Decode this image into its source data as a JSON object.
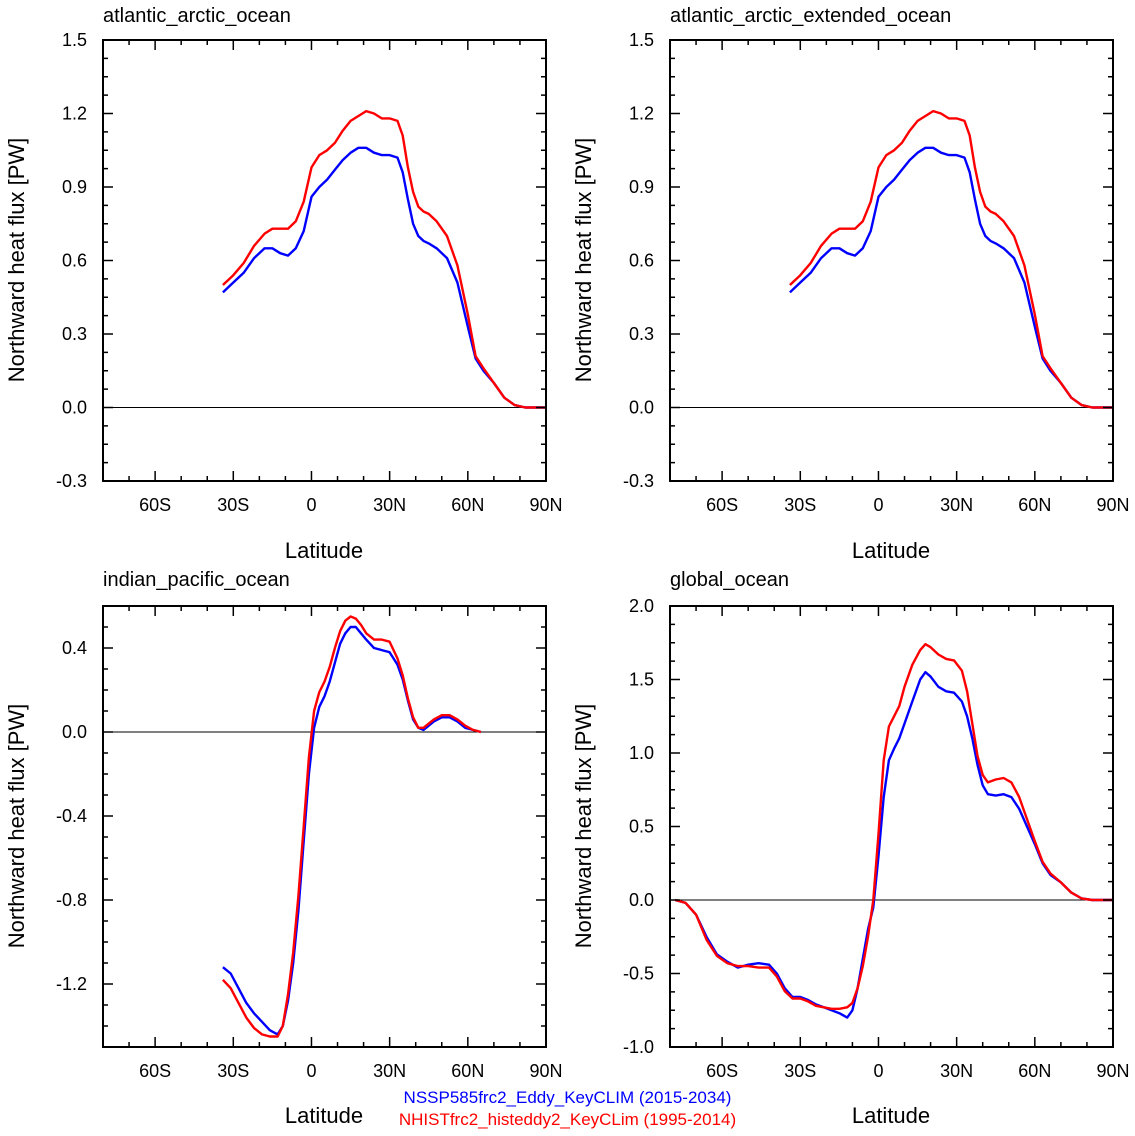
{
  "colors": {
    "ssp585": "#0000ff",
    "hist": "#ff0000",
    "axis": "#000000"
  },
  "legend": {
    "ssp585": "NSSP585frc2_Eddy_KeyCLIM (2015-2034)",
    "hist": "NHISTfrc2_histeddy2_KeyCLim (1995-2014)"
  },
  "chart_data": [
    {
      "type": "line",
      "title": "atlantic_arctic_ocean",
      "xlabel": "Latitude",
      "ylabel": "Northward heat flux [PW]",
      "xlim": [
        -80,
        90
      ],
      "ylim": [
        -0.3,
        1.5
      ],
      "xticks": [
        {
          "v": -60,
          "label": "60S"
        },
        {
          "v": -30,
          "label": "30S"
        },
        {
          "v": 0,
          "label": "0"
        },
        {
          "v": 30,
          "label": "30N"
        },
        {
          "v": 60,
          "label": "60N"
        },
        {
          "v": 90,
          "label": "90N"
        }
      ],
      "yticks": [
        {
          "v": -0.3,
          "label": "-0.3"
        },
        {
          "v": 0,
          "label": "0.0"
        },
        {
          "v": 0.3,
          "label": "0.3"
        },
        {
          "v": 0.6,
          "label": "0.6"
        },
        {
          "v": 0.9,
          "label": "0.9"
        },
        {
          "v": 1.2,
          "label": "1.2"
        },
        {
          "v": 1.5,
          "label": "1.5"
        }
      ],
      "zero_line": true,
      "series": [
        {
          "name": "NSSP585frc2_Eddy_KeyCLIM (2015-2034)",
          "color": "#0000ff",
          "x": [
            -34,
            -30,
            -26,
            -22,
            -18,
            -15,
            -12,
            -9,
            -6,
            -3,
            0,
            3,
            6,
            9,
            12,
            15,
            18,
            21,
            24,
            27,
            30,
            33,
            35,
            37,
            39,
            41,
            43,
            45,
            48,
            52,
            56,
            60,
            63,
            66,
            70,
            74,
            78,
            82,
            86,
            90
          ],
          "y": [
            0.47,
            0.51,
            0.55,
            0.61,
            0.65,
            0.65,
            0.63,
            0.62,
            0.65,
            0.72,
            0.86,
            0.9,
            0.93,
            0.97,
            1.01,
            1.04,
            1.06,
            1.06,
            1.04,
            1.03,
            1.03,
            1.02,
            0.96,
            0.85,
            0.75,
            0.7,
            0.68,
            0.67,
            0.65,
            0.61,
            0.51,
            0.33,
            0.2,
            0.15,
            0.1,
            0.04,
            0.01,
            0.0,
            0.0,
            0.0
          ]
        },
        {
          "name": "NHISTfrc2_histeddy2_KeyCLim (1995-2014)",
          "color": "#ff0000",
          "x": [
            -34,
            -30,
            -26,
            -22,
            -18,
            -15,
            -12,
            -9,
            -6,
            -3,
            0,
            3,
            6,
            9,
            12,
            15,
            18,
            21,
            24,
            27,
            30,
            33,
            35,
            37,
            39,
            41,
            43,
            45,
            48,
            52,
            56,
            60,
            63,
            66,
            70,
            74,
            78,
            82,
            86,
            90
          ],
          "y": [
            0.5,
            0.54,
            0.59,
            0.66,
            0.71,
            0.73,
            0.73,
            0.73,
            0.76,
            0.84,
            0.98,
            1.03,
            1.05,
            1.08,
            1.13,
            1.17,
            1.19,
            1.21,
            1.2,
            1.18,
            1.18,
            1.17,
            1.11,
            0.98,
            0.88,
            0.82,
            0.8,
            0.79,
            0.76,
            0.7,
            0.58,
            0.38,
            0.21,
            0.16,
            0.1,
            0.04,
            0.01,
            0.0,
            0.0,
            0.0
          ]
        }
      ]
    },
    {
      "type": "line",
      "title": "atlantic_arctic_extended_ocean",
      "xlabel": "Latitude",
      "ylabel": "Northward heat flux [PW]",
      "xlim": [
        -80,
        90
      ],
      "ylim": [
        -0.3,
        1.5
      ],
      "xticks": [
        {
          "v": -60,
          "label": "60S"
        },
        {
          "v": -30,
          "label": "30S"
        },
        {
          "v": 0,
          "label": "0"
        },
        {
          "v": 30,
          "label": "30N"
        },
        {
          "v": 60,
          "label": "60N"
        },
        {
          "v": 90,
          "label": "90N"
        }
      ],
      "yticks": [
        {
          "v": -0.3,
          "label": "-0.3"
        },
        {
          "v": 0,
          "label": "0.0"
        },
        {
          "v": 0.3,
          "label": "0.3"
        },
        {
          "v": 0.6,
          "label": "0.6"
        },
        {
          "v": 0.9,
          "label": "0.9"
        },
        {
          "v": 1.2,
          "label": "1.2"
        },
        {
          "v": 1.5,
          "label": "1.5"
        }
      ],
      "zero_line": true,
      "series": [
        {
          "name": "NSSP585frc2_Eddy_KeyCLIM (2015-2034)",
          "color": "#0000ff",
          "x": [
            -34,
            -30,
            -26,
            -22,
            -18,
            -15,
            -12,
            -9,
            -6,
            -3,
            0,
            3,
            6,
            9,
            12,
            15,
            18,
            21,
            24,
            27,
            30,
            33,
            35,
            37,
            39,
            41,
            43,
            45,
            48,
            52,
            56,
            60,
            63,
            66,
            70,
            74,
            78,
            82,
            86,
            90
          ],
          "y": [
            0.47,
            0.51,
            0.55,
            0.61,
            0.65,
            0.65,
            0.63,
            0.62,
            0.65,
            0.72,
            0.86,
            0.9,
            0.93,
            0.97,
            1.01,
            1.04,
            1.06,
            1.06,
            1.04,
            1.03,
            1.03,
            1.02,
            0.96,
            0.85,
            0.75,
            0.7,
            0.68,
            0.67,
            0.65,
            0.61,
            0.51,
            0.33,
            0.2,
            0.15,
            0.1,
            0.04,
            0.01,
            0.0,
            0.0,
            0.0
          ]
        },
        {
          "name": "NHISTfrc2_histeddy2_KeyCLim (1995-2014)",
          "color": "#ff0000",
          "x": [
            -34,
            -30,
            -26,
            -22,
            -18,
            -15,
            -12,
            -9,
            -6,
            -3,
            0,
            3,
            6,
            9,
            12,
            15,
            18,
            21,
            24,
            27,
            30,
            33,
            35,
            37,
            39,
            41,
            43,
            45,
            48,
            52,
            56,
            60,
            63,
            66,
            70,
            74,
            78,
            82,
            86,
            90
          ],
          "y": [
            0.5,
            0.54,
            0.59,
            0.66,
            0.71,
            0.73,
            0.73,
            0.73,
            0.76,
            0.84,
            0.98,
            1.03,
            1.05,
            1.08,
            1.13,
            1.17,
            1.19,
            1.21,
            1.2,
            1.18,
            1.18,
            1.17,
            1.11,
            0.98,
            0.88,
            0.82,
            0.8,
            0.79,
            0.76,
            0.7,
            0.58,
            0.38,
            0.21,
            0.16,
            0.1,
            0.04,
            0.01,
            0.0,
            0.0,
            0.0
          ]
        }
      ]
    },
    {
      "type": "line",
      "title": "indian_pacific_ocean",
      "xlabel": "Latitude",
      "ylabel": "Northward heat flux [PW]",
      "xlim": [
        -80,
        90
      ],
      "ylim": [
        -1.5,
        0.6
      ],
      "xticks": [
        {
          "v": -60,
          "label": "60S"
        },
        {
          "v": -30,
          "label": "30S"
        },
        {
          "v": 0,
          "label": "0"
        },
        {
          "v": 30,
          "label": "30N"
        },
        {
          "v": 60,
          "label": "60N"
        },
        {
          "v": 90,
          "label": "90N"
        }
      ],
      "yticks": [
        {
          "v": -1.2,
          "label": "-1.2"
        },
        {
          "v": -0.8,
          "label": "-0.8"
        },
        {
          "v": -0.4,
          "label": "-0.4"
        },
        {
          "v": 0,
          "label": "0.0"
        },
        {
          "v": 0.4,
          "label": "0.4"
        }
      ],
      "zero_line": true,
      "series": [
        {
          "name": "NSSP585frc2_Eddy_KeyCLIM (2015-2034)",
          "color": "#0000ff",
          "x": [
            -34,
            -31,
            -28,
            -25,
            -22,
            -19,
            -16,
            -13,
            -11,
            -9,
            -7,
            -5,
            -3,
            -1,
            1,
            3,
            5,
            7,
            9,
            11,
            13,
            15,
            17,
            19,
            21,
            24,
            27,
            30,
            33,
            35,
            37,
            39,
            41,
            43,
            45,
            47,
            50,
            53,
            56,
            59,
            62,
            65
          ],
          "y": [
            -1.12,
            -1.15,
            -1.22,
            -1.29,
            -1.34,
            -1.38,
            -1.42,
            -1.44,
            -1.4,
            -1.28,
            -1.1,
            -0.85,
            -0.52,
            -0.2,
            0.02,
            0.12,
            0.17,
            0.24,
            0.33,
            0.42,
            0.47,
            0.5,
            0.5,
            0.47,
            0.44,
            0.4,
            0.39,
            0.38,
            0.32,
            0.25,
            0.15,
            0.06,
            0.02,
            0.01,
            0.03,
            0.05,
            0.07,
            0.07,
            0.05,
            0.02,
            0.01,
            0.0
          ]
        },
        {
          "name": "NHISTfrc2_histeddy2_KeyCLim (1995-2014)",
          "color": "#ff0000",
          "x": [
            -34,
            -31,
            -28,
            -25,
            -22,
            -19,
            -16,
            -13,
            -11,
            -9,
            -7,
            -5,
            -3,
            -1,
            1,
            3,
            5,
            7,
            9,
            11,
            13,
            15,
            17,
            19,
            21,
            24,
            27,
            30,
            33,
            35,
            37,
            39,
            41,
            43,
            45,
            47,
            50,
            53,
            56,
            59,
            62,
            65
          ],
          "y": [
            -1.18,
            -1.22,
            -1.29,
            -1.36,
            -1.41,
            -1.44,
            -1.45,
            -1.45,
            -1.4,
            -1.25,
            -1.05,
            -0.78,
            -0.45,
            -0.12,
            0.1,
            0.19,
            0.24,
            0.31,
            0.4,
            0.48,
            0.53,
            0.55,
            0.54,
            0.51,
            0.47,
            0.44,
            0.44,
            0.43,
            0.35,
            0.27,
            0.16,
            0.07,
            0.02,
            0.02,
            0.04,
            0.06,
            0.08,
            0.08,
            0.06,
            0.03,
            0.01,
            0.0
          ]
        }
      ]
    },
    {
      "type": "line",
      "title": "global_ocean",
      "xlabel": "Latitude",
      "ylabel": "Northward heat flux [PW]",
      "xlim": [
        -80,
        90
      ],
      "ylim": [
        -1.0,
        2.0
      ],
      "xticks": [
        {
          "v": -60,
          "label": "60S"
        },
        {
          "v": -30,
          "label": "30S"
        },
        {
          "v": 0,
          "label": "0"
        },
        {
          "v": 30,
          "label": "30N"
        },
        {
          "v": 60,
          "label": "60N"
        },
        {
          "v": 90,
          "label": "90N"
        }
      ],
      "yticks": [
        {
          "v": -1.0,
          "label": "-1.0"
        },
        {
          "v": -0.5,
          "label": "-0.5"
        },
        {
          "v": 0,
          "label": "0.0"
        },
        {
          "v": 0.5,
          "label": "0.5"
        },
        {
          "v": 1.0,
          "label": "1.0"
        },
        {
          "v": 1.5,
          "label": "1.5"
        },
        {
          "v": 2.0,
          "label": "2.0"
        }
      ],
      "zero_line": true,
      "series": [
        {
          "name": "NSSP585frc2_Eddy_KeyCLIM (2015-2034)",
          "color": "#0000ff",
          "x": [
            -78,
            -74,
            -70,
            -66,
            -62,
            -58,
            -54,
            -50,
            -46,
            -42,
            -39,
            -36,
            -33,
            -30,
            -27,
            -24,
            -21,
            -18,
            -15,
            -12,
            -10,
            -8,
            -6,
            -4,
            -2,
            0,
            2,
            4,
            6,
            8,
            10,
            13,
            16,
            18,
            20,
            23,
            26,
            29,
            32,
            34,
            36,
            38,
            40,
            42,
            45,
            48,
            51,
            54,
            57,
            60,
            63,
            66,
            70,
            74,
            78,
            82,
            86,
            90
          ],
          "y": [
            0.0,
            -0.02,
            -0.1,
            -0.25,
            -0.37,
            -0.42,
            -0.46,
            -0.44,
            -0.43,
            -0.44,
            -0.5,
            -0.6,
            -0.66,
            -0.66,
            -0.68,
            -0.71,
            -0.73,
            -0.75,
            -0.77,
            -0.8,
            -0.75,
            -0.6,
            -0.4,
            -0.2,
            -0.05,
            0.3,
            0.7,
            0.95,
            1.03,
            1.1,
            1.2,
            1.35,
            1.5,
            1.55,
            1.52,
            1.45,
            1.42,
            1.41,
            1.35,
            1.25,
            1.1,
            0.92,
            0.78,
            0.72,
            0.71,
            0.72,
            0.7,
            0.62,
            0.5,
            0.38,
            0.25,
            0.17,
            0.12,
            0.05,
            0.01,
            0.0,
            0.0,
            0.0
          ]
        },
        {
          "name": "NHISTfrc2_histeddy2_KeyCLim (1995-2014)",
          "color": "#ff0000",
          "x": [
            -78,
            -74,
            -70,
            -66,
            -62,
            -58,
            -54,
            -50,
            -46,
            -42,
            -39,
            -36,
            -33,
            -30,
            -27,
            -24,
            -21,
            -18,
            -15,
            -12,
            -10,
            -8,
            -6,
            -4,
            -2,
            0,
            2,
            4,
            6,
            8,
            10,
            13,
            16,
            18,
            20,
            23,
            26,
            29,
            32,
            34,
            36,
            38,
            40,
            42,
            45,
            48,
            51,
            54,
            57,
            60,
            63,
            66,
            70,
            74,
            78,
            82,
            86,
            90
          ],
          "y": [
            0.0,
            -0.02,
            -0.1,
            -0.27,
            -0.38,
            -0.43,
            -0.45,
            -0.45,
            -0.46,
            -0.46,
            -0.52,
            -0.62,
            -0.67,
            -0.67,
            -0.69,
            -0.72,
            -0.73,
            -0.74,
            -0.74,
            -0.73,
            -0.7,
            -0.6,
            -0.45,
            -0.25,
            0.0,
            0.45,
            0.95,
            1.18,
            1.25,
            1.32,
            1.45,
            1.6,
            1.7,
            1.74,
            1.72,
            1.67,
            1.64,
            1.63,
            1.56,
            1.42,
            1.2,
            0.98,
            0.85,
            0.8,
            0.82,
            0.83,
            0.8,
            0.7,
            0.55,
            0.4,
            0.26,
            0.18,
            0.12,
            0.05,
            0.01,
            0.0,
            0.0,
            0.0
          ]
        }
      ]
    }
  ]
}
